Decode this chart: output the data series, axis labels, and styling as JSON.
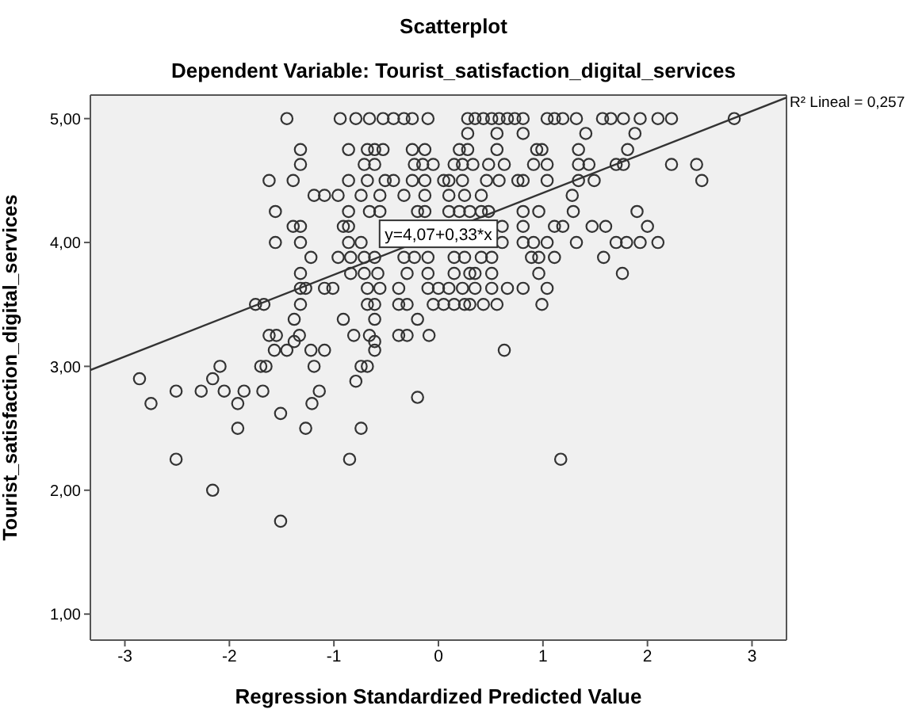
{
  "chart_data": {
    "type": "scatter",
    "title": "Scatterplot",
    "subtitle": "Dependent Variable: Tourist_satisfaction_digital_services",
    "xlabel": "Regression Standardized Predicted Value",
    "ylabel": "Tourist_satisfaction_digital_services",
    "xlim": [
      -3.33,
      3.33
    ],
    "ylim": [
      0.79,
      5.19
    ],
    "xticks": [
      -3,
      -2,
      -1,
      0,
      1,
      2,
      3
    ],
    "yticks": [
      {
        "value": 1,
        "label": "1,00"
      },
      {
        "value": 2,
        "label": "2,00"
      },
      {
        "value": 3,
        "label": "3,00"
      },
      {
        "value": 4,
        "label": "4,00"
      },
      {
        "value": 5,
        "label": "5,00"
      }
    ],
    "grid": false,
    "legend": false,
    "annotations": [
      {
        "text": "y=4,07+0,33*x",
        "x": 0,
        "y": 4.07
      },
      {
        "text": "R² Lineal = 0,257",
        "x": 3.33,
        "y": 5.17
      }
    ],
    "series": [
      {
        "marker": "circle",
        "color": "#333333",
        "x": [
          -1.45,
          -0.94,
          -0.79,
          -0.66,
          -0.53,
          -0.43,
          -0.33,
          -0.25,
          -0.1,
          0.28,
          0.35,
          0.43,
          0.51,
          0.58,
          0.66,
          0.73,
          0.81,
          1.04,
          1.11,
          1.19,
          1.32,
          1.57,
          1.65,
          1.77,
          1.93,
          2.1,
          2.23,
          2.83,
          0.28,
          0.56,
          0.81,
          1.41,
          1.88,
          -1.32,
          -0.86,
          -0.68,
          -0.61,
          -0.53,
          -0.25,
          -0.13,
          0.2,
          0.28,
          0.56,
          0.94,
          0.99,
          1.34,
          1.81,
          -1.32,
          -0.71,
          -0.61,
          -0.23,
          -0.15,
          -0.05,
          0.15,
          0.23,
          0.33,
          0.48,
          0.63,
          0.91,
          1.04,
          1.34,
          1.44,
          1.7,
          1.77,
          2.23,
          2.47,
          -1.62,
          -1.39,
          -0.86,
          -0.68,
          -0.51,
          -0.43,
          -0.25,
          -0.13,
          0.05,
          0.1,
          0.23,
          0.46,
          0.58,
          0.76,
          0.81,
          1.04,
          1.34,
          1.49,
          2.52,
          -1.19,
          -1.09,
          -0.96,
          -0.74,
          -0.56,
          -0.33,
          -0.13,
          0.1,
          0.25,
          0.41,
          1.28,
          -1.56,
          -0.86,
          -0.66,
          -0.56,
          -0.2,
          -0.13,
          0.1,
          0.2,
          0.3,
          0.41,
          0.48,
          0.81,
          0.96,
          1.29,
          1.9,
          -1.39,
          -1.32,
          -0.91,
          -0.86,
          0.61,
          0.81,
          1.11,
          1.19,
          1.47,
          1.6,
          2.0,
          -1.56,
          -1.32,
          -0.86,
          -0.74,
          0.61,
          0.81,
          0.91,
          1.04,
          1.32,
          1.7,
          1.8,
          1.93,
          2.1,
          -1.22,
          -0.96,
          -0.84,
          -0.71,
          -0.61,
          -0.33,
          -0.23,
          -0.1,
          0.15,
          0.25,
          0.41,
          0.51,
          0.89,
          0.96,
          1.11,
          1.58,
          -1.32,
          -0.84,
          -0.71,
          -0.58,
          -0.3,
          -0.1,
          0.15,
          0.3,
          0.35,
          0.51,
          0.96,
          1.76,
          -1.32,
          -1.27,
          -1.09,
          -1.01,
          -0.68,
          -0.56,
          -0.38,
          -0.1,
          0.0,
          0.1,
          0.23,
          0.35,
          0.51,
          0.66,
          0.81,
          1.04,
          -1.75,
          -1.67,
          -1.32,
          -0.68,
          -0.61,
          -0.38,
          -0.3,
          -0.05,
          0.05,
          0.15,
          0.25,
          0.3,
          0.43,
          0.56,
          0.99,
          -1.38,
          -0.91,
          -0.61,
          -0.2,
          -1.62,
          -1.55,
          -1.33,
          -0.81,
          -0.66,
          -0.38,
          -0.3,
          -0.09,
          -1.38,
          -0.61,
          -1.57,
          -1.45,
          -1.22,
          -1.09,
          -0.61,
          0.63,
          -2.09,
          -1.7,
          -1.65,
          -1.19,
          -0.74,
          -0.68,
          -2.86,
          -2.16,
          -0.79,
          -2.51,
          -2.27,
          -2.05,
          -1.86,
          -1.68,
          -1.14,
          -0.2,
          -2.75,
          -1.92,
          -1.21,
          -1.51,
          -1.92,
          -1.27,
          -0.74,
          -2.51,
          -0.85,
          1.17,
          -2.16,
          -1.51
        ],
        "values": [
          5,
          5,
          5,
          5,
          5,
          5,
          5,
          5,
          5,
          5,
          5,
          5,
          5,
          5,
          5,
          5,
          5,
          5,
          5,
          5,
          5,
          5,
          5,
          5,
          5,
          5,
          5,
          5,
          4.88,
          4.88,
          4.88,
          4.88,
          4.88,
          4.75,
          4.75,
          4.75,
          4.75,
          4.75,
          4.75,
          4.75,
          4.75,
          4.75,
          4.75,
          4.75,
          4.75,
          4.75,
          4.75,
          4.63,
          4.63,
          4.63,
          4.63,
          4.63,
          4.63,
          4.63,
          4.63,
          4.63,
          4.63,
          4.63,
          4.63,
          4.63,
          4.63,
          4.63,
          4.63,
          4.63,
          4.63,
          4.63,
          4.5,
          4.5,
          4.5,
          4.5,
          4.5,
          4.5,
          4.5,
          4.5,
          4.5,
          4.5,
          4.5,
          4.5,
          4.5,
          4.5,
          4.5,
          4.5,
          4.5,
          4.5,
          4.5,
          4.38,
          4.38,
          4.38,
          4.38,
          4.38,
          4.38,
          4.38,
          4.38,
          4.38,
          4.38,
          4.38,
          4.25,
          4.25,
          4.25,
          4.25,
          4.25,
          4.25,
          4.25,
          4.25,
          4.25,
          4.25,
          4.25,
          4.25,
          4.25,
          4.25,
          4.25,
          4.13,
          4.13,
          4.13,
          4.13,
          4.13,
          4.13,
          4.13,
          4.13,
          4.13,
          4.13,
          4.13,
          4,
          4,
          4,
          4,
          4,
          4,
          4,
          4,
          4,
          4,
          4,
          4,
          4,
          3.88,
          3.88,
          3.88,
          3.88,
          3.88,
          3.88,
          3.88,
          3.88,
          3.88,
          3.88,
          3.88,
          3.88,
          3.88,
          3.88,
          3.88,
          3.88,
          3.75,
          3.75,
          3.75,
          3.75,
          3.75,
          3.75,
          3.75,
          3.75,
          3.75,
          3.75,
          3.75,
          3.75,
          3.63,
          3.63,
          3.63,
          3.63,
          3.63,
          3.63,
          3.63,
          3.63,
          3.63,
          3.63,
          3.63,
          3.63,
          3.63,
          3.63,
          3.63,
          3.63,
          3.5,
          3.5,
          3.5,
          3.5,
          3.5,
          3.5,
          3.5,
          3.5,
          3.5,
          3.5,
          3.5,
          3.5,
          3.5,
          3.5,
          3.5,
          3.38,
          3.38,
          3.38,
          3.38,
          3.25,
          3.25,
          3.25,
          3.25,
          3.25,
          3.25,
          3.25,
          3.25,
          3.2,
          3.2,
          3.13,
          3.13,
          3.13,
          3.13,
          3.13,
          3.13,
          3,
          3,
          3,
          3,
          3,
          3,
          2.9,
          2.9,
          2.88,
          2.8,
          2.8,
          2.8,
          2.8,
          2.8,
          2.8,
          2.75,
          2.7,
          2.7,
          2.7,
          2.62,
          2.5,
          2.5,
          2.5,
          2.25,
          2.25,
          2.25,
          2,
          1.75
        ]
      },
      {
        "type": "line",
        "marker": "none",
        "color": "#333333",
        "x": [
          -3.33,
          3.33
        ],
        "values": [
          2.97,
          5.17
        ]
      }
    ]
  }
}
